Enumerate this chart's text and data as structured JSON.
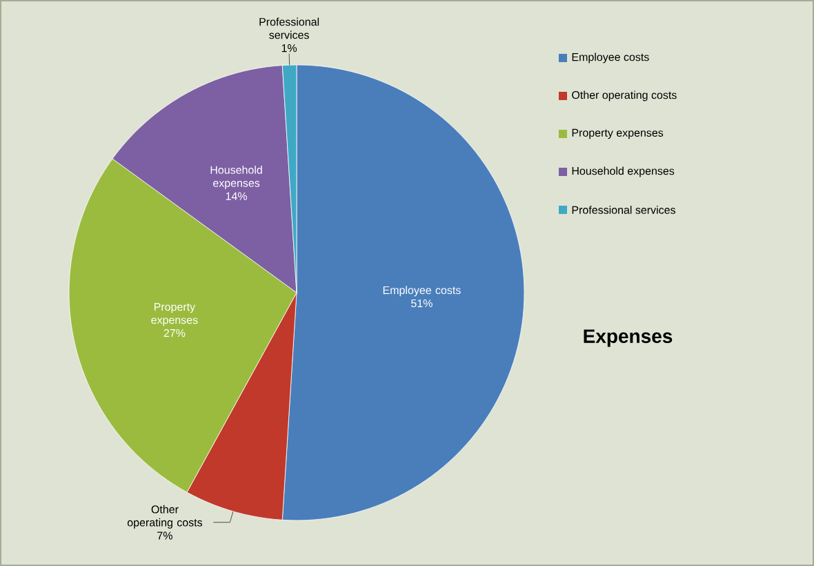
{
  "chart_data": {
    "type": "pie",
    "title": "Expenses",
    "categories": [
      "Employee costs",
      "Other operating costs",
      "Property expenses",
      "Household expenses",
      "Professional services"
    ],
    "values": [
      51,
      7,
      27,
      14,
      1
    ],
    "value_labels": [
      "51%",
      "7%",
      "27%",
      "14%",
      "1%"
    ],
    "colors": [
      "#4a7ebb",
      "#c0392b",
      "#9bbb3f",
      "#7d5fa3",
      "#3fa9c5"
    ],
    "legend": "right"
  }
}
